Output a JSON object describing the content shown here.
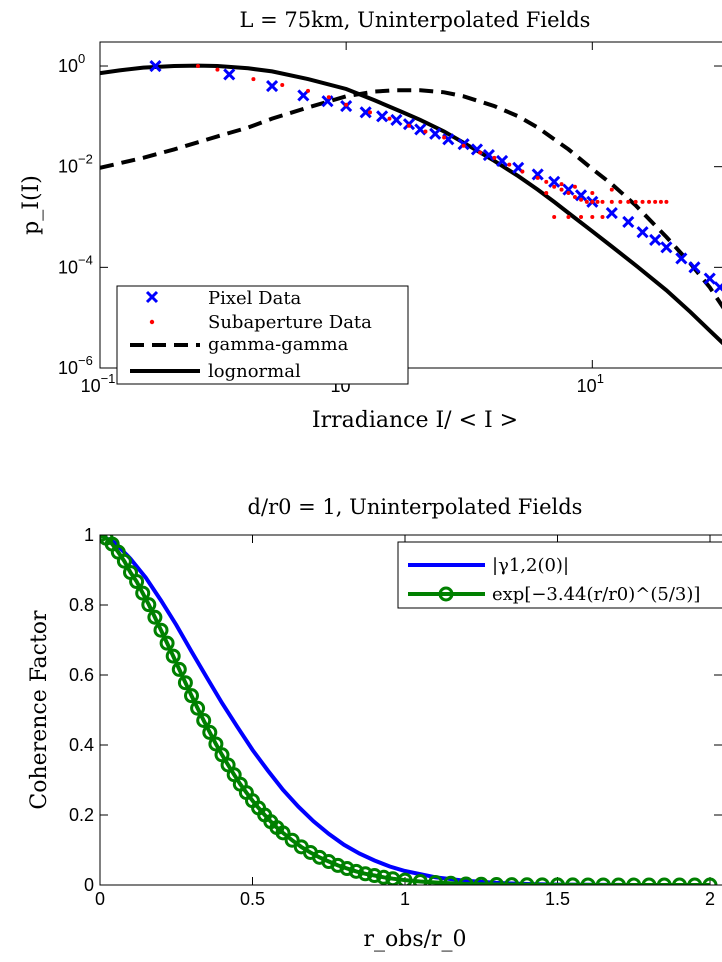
{
  "chart_data": [
    {
      "type": "scatter",
      "title": "L = 75km, Uninterpolated Fields",
      "xlabel": "Irradiance I/ < I >",
      "ylabel": "p_I(I)",
      "xscale": "log",
      "yscale": "log",
      "xlim": [
        0.1,
        40
      ],
      "ylim": [
        1e-06,
        3
      ],
      "xticks": [
        {
          "value": 0.1,
          "base": "10",
          "exp": "−1"
        },
        {
          "value": 1,
          "base": "10",
          "exp": "0"
        },
        {
          "value": 10,
          "base": "10",
          "exp": "1"
        }
      ],
      "yticks": [
        {
          "value": 1e-06,
          "base": "10",
          "exp": "−6"
        },
        {
          "value": 0.0001,
          "base": "10",
          "exp": "−4"
        },
        {
          "value": 0.01,
          "base": "10",
          "exp": "−2"
        },
        {
          "value": 1,
          "base": "10",
          "exp": "0"
        }
      ],
      "legend_position": "bottom-left",
      "series": [
        {
          "name": "Pixel Data",
          "kind": "marker-x",
          "color": "#0000ff",
          "x": [
            0.168,
            0.335,
            0.5,
            0.67,
            0.84,
            1.0,
            1.2,
            1.4,
            1.6,
            1.8,
            2.0,
            2.3,
            2.6,
            3.0,
            3.4,
            3.8,
            4.3,
            5.0,
            6.0,
            7.0,
            8.0,
            9.0,
            10.0,
            12.0,
            14.0,
            16.0,
            18.0,
            20.0,
            23.0,
            26.0,
            30.0,
            33.0,
            36.0,
            39.0
          ],
          "y": [
            1.0,
            0.68,
            0.4,
            0.26,
            0.2,
            0.16,
            0.12,
            0.1,
            0.085,
            0.07,
            0.055,
            0.045,
            0.035,
            0.028,
            0.022,
            0.017,
            0.013,
            0.0095,
            0.007,
            0.005,
            0.0035,
            0.0027,
            0.002,
            0.0012,
            0.0008,
            0.0005,
            0.00035,
            0.00025,
            0.00015,
            0.0001,
            6e-05,
            4e-05,
            2.5e-05,
            1.5e-05
          ]
        },
        {
          "name": "Subaperture Data",
          "kind": "marker-dot",
          "color": "#ff0000",
          "x": [
            0.25,
            0.3,
            0.42,
            0.55,
            0.7,
            0.85,
            1.0,
            1.25,
            1.5,
            1.8,
            2.1,
            2.5,
            3.0,
            3.5,
            4.0,
            4.6,
            5.2,
            6.0,
            6.5,
            7.0,
            7.5,
            8.0,
            8.5,
            9.0,
            9.5,
            10.0,
            10.5,
            11.0,
            12.0,
            13.0,
            14.0,
            15.0,
            16.0,
            17.0,
            18.0,
            19.0,
            20.0,
            7.0,
            8.0,
            9.0,
            10.0,
            11.0,
            6.5,
            8.5,
            7.5,
            10.0,
            12.0
          ],
          "y": [
            1.0,
            0.85,
            0.55,
            0.42,
            0.32,
            0.24,
            0.17,
            0.12,
            0.09,
            0.065,
            0.05,
            0.038,
            0.026,
            0.019,
            0.015,
            0.011,
            0.008,
            0.006,
            0.005,
            0.004,
            0.0035,
            0.003,
            0.0025,
            0.0022,
            0.002,
            0.002,
            0.002,
            0.002,
            0.002,
            0.002,
            0.002,
            0.002,
            0.002,
            0.002,
            0.002,
            0.002,
            0.002,
            0.001,
            0.001,
            0.001,
            0.001,
            0.001,
            0.003,
            0.004,
            0.0045,
            0.003,
            0.0035
          ]
        },
        {
          "name": "gamma-gamma",
          "kind": "line-dashed",
          "color": "#000000",
          "x": [
            0.1,
            0.15,
            0.2,
            0.3,
            0.4,
            0.5,
            0.7,
            1.0,
            1.3,
            1.6,
            2.0,
            2.5,
            3.0,
            4.0,
            5.0,
            6.0,
            7.0,
            8.0,
            10.0,
            12.0,
            15.0,
            20.0,
            25.0,
            30.0,
            35.0,
            40.0
          ],
          "y": [
            0.0095,
            0.015,
            0.022,
            0.04,
            0.06,
            0.09,
            0.15,
            0.25,
            0.31,
            0.33,
            0.33,
            0.3,
            0.25,
            0.16,
            0.1,
            0.06,
            0.035,
            0.022,
            0.009,
            0.0045,
            0.0017,
            0.0004,
            0.00012,
            4e-05,
            1.3e-05,
            5e-06
          ]
        },
        {
          "name": "lognormal",
          "kind": "line-solid",
          "color": "#000000",
          "x": [
            0.1,
            0.12,
            0.15,
            0.2,
            0.25,
            0.3,
            0.4,
            0.5,
            0.7,
            1.0,
            1.3,
            1.7,
            2.0,
            2.5,
            3.0,
            4.0,
            5.0,
            6.0,
            7.0,
            8.0,
            10.0,
            12.0,
            15.0,
            20.0,
            25.0,
            30.0,
            35.0,
            40.0
          ],
          "y": [
            0.72,
            0.82,
            0.93,
            1.0,
            1.02,
            1.0,
            0.9,
            0.78,
            0.55,
            0.35,
            0.21,
            0.12,
            0.085,
            0.05,
            0.03,
            0.013,
            0.0065,
            0.0035,
            0.002,
            0.0012,
            0.00052,
            0.00026,
            0.00011,
            3.5e-05,
            1.3e-05,
            5.5e-06,
            2.7e-06,
            1.3e-06
          ]
        }
      ]
    },
    {
      "type": "line",
      "title": "d/r0 = 1, Uninterpolated Fields",
      "xlabel": "r_obs/r_0",
      "ylabel": "Coherence Factor",
      "xlim": [
        0,
        2
      ],
      "ylim": [
        0,
        1
      ],
      "xticks": [
        0,
        0.5,
        1,
        1.5,
        2
      ],
      "xtick_labels": [
        "0",
        "0.5",
        "1",
        "1.5",
        "2"
      ],
      "yticks": [
        0,
        0.2,
        0.4,
        0.6,
        0.8,
        1
      ],
      "ytick_labels": [
        "0",
        "0.2",
        "0.4",
        "0.6",
        "0.8",
        "1"
      ],
      "legend_position": "top-right",
      "series": [
        {
          "name": "|γ1,2(0)|",
          "kind": "line-solid",
          "color": "#0000ff",
          "x": [
            0,
            0.05,
            0.1,
            0.15,
            0.2,
            0.25,
            0.3,
            0.35,
            0.4,
            0.45,
            0.5,
            0.55,
            0.6,
            0.65,
            0.7,
            0.75,
            0.8,
            0.85,
            0.9,
            0.95,
            1.0,
            1.1,
            1.2,
            1.3,
            1.4,
            1.5,
            1.6,
            1.8,
            2.0
          ],
          "y": [
            1.0,
            0.977,
            0.932,
            0.878,
            0.813,
            0.743,
            0.667,
            0.593,
            0.52,
            0.452,
            0.386,
            0.327,
            0.272,
            0.224,
            0.182,
            0.146,
            0.115,
            0.09,
            0.07,
            0.053,
            0.04,
            0.022,
            0.012,
            0.006,
            0.003,
            0.001,
            0.0006,
            0.0001,
            0.0
          ]
        },
        {
          "name": "exp[−3.44(r/r0)^(5/3)]",
          "kind": "line-circle",
          "color": "#008000",
          "x": [
            0,
            0.02,
            0.04,
            0.06,
            0.08,
            0.1,
            0.12,
            0.14,
            0.16,
            0.18,
            0.2,
            0.22,
            0.24,
            0.26,
            0.28,
            0.3,
            0.32,
            0.34,
            0.36,
            0.38,
            0.4,
            0.42,
            0.44,
            0.46,
            0.48,
            0.5,
            0.52,
            0.54,
            0.56,
            0.58,
            0.6,
            0.63,
            0.66,
            0.69,
            0.72,
            0.75,
            0.78,
            0.81,
            0.84,
            0.87,
            0.9,
            0.93,
            0.96,
            1.0,
            1.05,
            1.1,
            1.15,
            1.2,
            1.25,
            1.3,
            1.35,
            1.4,
            1.45,
            1.5,
            1.55,
            1.6,
            1.65,
            1.7,
            1.75,
            1.8,
            1.85,
            1.9,
            1.95,
            2.0
          ],
          "y": [
            1.0,
            0.991,
            0.974,
            0.951,
            0.925,
            0.893,
            0.867,
            0.834,
            0.801,
            0.765,
            0.728,
            0.691,
            0.654,
            0.616,
            0.578,
            0.541,
            0.505,
            0.47,
            0.436,
            0.403,
            0.372,
            0.343,
            0.315,
            0.288,
            0.264,
            0.241,
            0.22,
            0.2,
            0.181,
            0.164,
            0.149,
            0.128,
            0.109,
            0.093,
            0.079,
            0.067,
            0.056,
            0.047,
            0.039,
            0.032,
            0.027,
            0.022,
            0.018,
            0.014,
            0.01,
            0.007,
            0.005,
            0.003,
            0.002,
            0.0014,
            0.001,
            0.0006,
            0.0004,
            0.0003,
            0.0002,
            0.0001,
            0.0001,
            0.0,
            0.0,
            0.0,
            0.0,
            0.0,
            0.0,
            0.0
          ]
        }
      ]
    }
  ]
}
